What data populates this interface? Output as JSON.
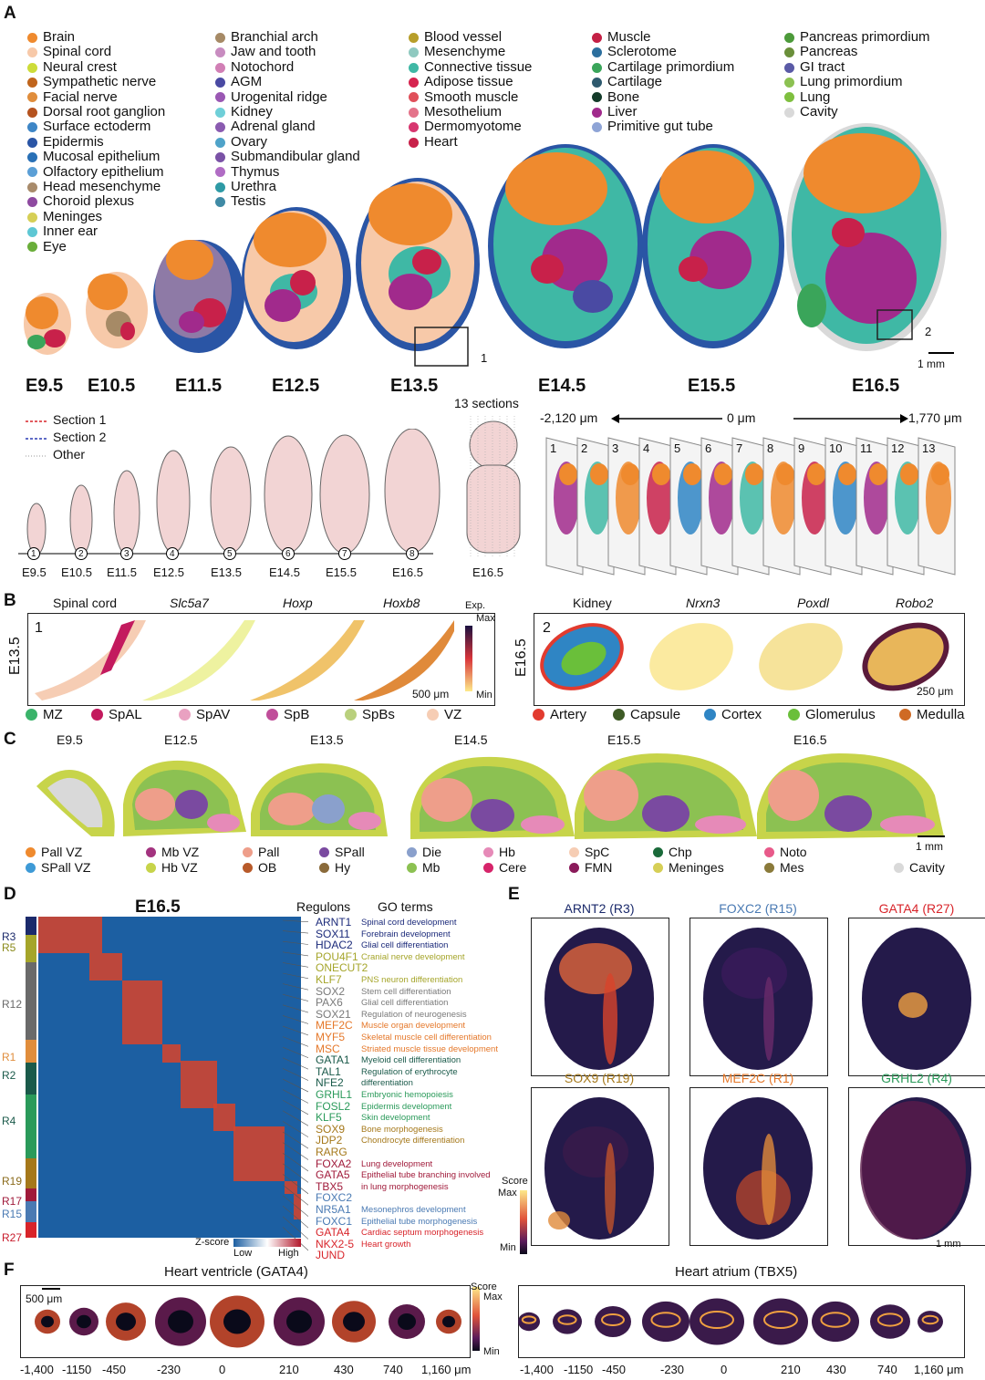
{
  "panels": {
    "A": "A",
    "B": "B",
    "C": "C",
    "D": "D",
    "E": "E",
    "F": "F"
  },
  "colors": {
    "brain": "#ef8a2e",
    "spinal": "#f7c9a9",
    "heart": "#c8214a",
    "liver": "#a12a8c",
    "muscle": "#c42045",
    "blue": "#2a63b1",
    "cyan": "#4fc9d8",
    "green": "#3aa55a",
    "olive": "#b9b537",
    "gray": "#d8d8d8",
    "navy": "#1b1e52"
  },
  "panelA": {
    "legend_col1": [
      {
        "label": "Brain",
        "color": "#ef8a2e"
      },
      {
        "label": "Spinal cord",
        "color": "#f7c9a9"
      },
      {
        "label": "Neural crest",
        "color": "#cddc39"
      },
      {
        "label": "Sympathetic nerve",
        "color": "#c0651c"
      },
      {
        "label": "Facial nerve",
        "color": "#e08d3c"
      },
      {
        "label": "Dorsal root ganglion",
        "color": "#b5531f"
      },
      {
        "label": "Surface ectoderm",
        "color": "#3e86c6"
      },
      {
        "label": "Epidermis",
        "color": "#2a55a5"
      },
      {
        "label": "Mucosal epithelium",
        "color": "#2970b6"
      },
      {
        "label": "Olfactory epithelium",
        "color": "#5b9fd6"
      },
      {
        "label": "Head mesenchyme",
        "color": "#a88b6b"
      },
      {
        "label": "Choroid plexus",
        "color": "#8e4aa0"
      },
      {
        "label": "Meninges",
        "color": "#d6cf56"
      },
      {
        "label": "Inner ear",
        "color": "#5ec7d4"
      },
      {
        "label": "Eye",
        "color": "#6aae3a"
      }
    ],
    "legend_col2": [
      {
        "label": "Branchial arch",
        "color": "#a68a66"
      },
      {
        "label": "Jaw and tooth",
        "color": "#c88cc0"
      },
      {
        "label": "Notochord",
        "color": "#d17fb5"
      },
      {
        "label": "AGM",
        "color": "#4a4aa3"
      },
      {
        "label": "Urogenital ridge",
        "color": "#9a58b3"
      },
      {
        "label": "Kidney",
        "color": "#6fcfd8"
      },
      {
        "label": "Adrenal gland",
        "color": "#8a5bb0"
      },
      {
        "label": "Ovary",
        "color": "#4fa3c9"
      },
      {
        "label": "Submandibular gland",
        "color": "#7a52a6"
      },
      {
        "label": "Thymus",
        "color": "#b06cc4"
      },
      {
        "label": "Urethra",
        "color": "#2e9aa5"
      },
      {
        "label": "Testis",
        "color": "#3f8aa5"
      }
    ],
    "legend_col3": [
      {
        "label": "Blood vessel",
        "color": "#b79e2a"
      },
      {
        "label": "Mesenchyme",
        "color": "#8fc9c0"
      },
      {
        "label": "Connective tissue",
        "color": "#3fb8a5"
      },
      {
        "label": "Adipose tissue",
        "color": "#d6244f"
      },
      {
        "label": "Smooth muscle",
        "color": "#e0505a"
      },
      {
        "label": "Mesothelium",
        "color": "#e4738a"
      },
      {
        "label": "Dermomyotome",
        "color": "#d7366f"
      },
      {
        "label": "Heart",
        "color": "#c8214a"
      }
    ],
    "legend_col4": [
      {
        "label": "Muscle",
        "color": "#c42045"
      },
      {
        "label": "Sclerotome",
        "color": "#2c6f9e"
      },
      {
        "label": "Cartilage primordium",
        "color": "#3aa55a"
      },
      {
        "label": "Cartilage",
        "color": "#2e5a6e"
      },
      {
        "label": "Bone",
        "color": "#143b2a"
      },
      {
        "label": "Liver",
        "color": "#a12a8c"
      },
      {
        "label": "Primitive gut tube",
        "color": "#8ea4d6"
      }
    ],
    "legend_col5": [
      {
        "label": "Pancreas primordium",
        "color": "#4c9a3a"
      },
      {
        "label": "Pancreas",
        "color": "#6a8f3a"
      },
      {
        "label": "GI tract",
        "color": "#5a5aa6"
      },
      {
        "label": "Lung primordium",
        "color": "#8cc152"
      },
      {
        "label": "Lung",
        "color": "#7fbf3f"
      },
      {
        "label": "Cavity",
        "color": "#d9d9d9"
      }
    ],
    "stages": [
      "E9.5",
      "E10.5",
      "E11.5",
      "E12.5",
      "E13.5",
      "E14.5",
      "E15.5",
      "E16.5"
    ],
    "box_labels": [
      "1",
      "2"
    ],
    "scale_bar": "1 mm",
    "sections_title": "13 sections",
    "section_legend": [
      "Section 1",
      "Section 2",
      "Other"
    ],
    "axis_left": "-2,120 μm",
    "axis_mid": "0 μm",
    "axis_right": "1,770 μm",
    "timeline_nums": [
      "1",
      "2",
      "3",
      "4",
      "5",
      "6",
      "7",
      "8"
    ],
    "timeline_labels": [
      "E9.5",
      "E10.5",
      "E11.5",
      "E12.5",
      "E13.5",
      "E14.5",
      "E15.5",
      "E16.5"
    ],
    "large_embryo_label": "E16.5",
    "slice_nums": [
      "1",
      "2",
      "3",
      "4",
      "5",
      "6",
      "7",
      "8",
      "9",
      "10",
      "11",
      "12",
      "13"
    ]
  },
  "panelB": {
    "left_stage": "E13.5",
    "left_box": "1",
    "left_titles": [
      "Spinal cord",
      "Slc5a7",
      "Hoxp",
      "Hoxb8"
    ],
    "exp_label": "Exp.",
    "max": "Max",
    "min": "Min",
    "left_scale": "500 μm",
    "right_stage": "E16.5",
    "right_box": "2",
    "right_titles": [
      "Kidney",
      "Nrxn3",
      "Poxdl",
      "Robo2"
    ],
    "right_scale": "250 μm",
    "left_legend": [
      {
        "label": "MZ",
        "color": "#3ab36a"
      },
      {
        "label": "SpAL",
        "color": "#c31a5e"
      },
      {
        "label": "SpAV",
        "color": "#e9a1c1"
      },
      {
        "label": "SpB",
        "color": "#c04e9a"
      },
      {
        "label": "SpBs",
        "color": "#b9d07d"
      },
      {
        "label": "VZ",
        "color": "#f6cdb4"
      }
    ],
    "right_legend": [
      {
        "label": "Artery",
        "color": "#e23b2f"
      },
      {
        "label": "Capsule",
        "color": "#3d5a25"
      },
      {
        "label": "Cortex",
        "color": "#2f85c4"
      },
      {
        "label": "Glomerulus",
        "color": "#6abf3a"
      },
      {
        "label": "Medulla",
        "color": "#cf6a24"
      }
    ]
  },
  "panelC": {
    "stages": [
      "E9.5",
      "E12.5",
      "E13.5",
      "E14.5",
      "E15.5",
      "E16.5"
    ],
    "scale_bar": "1 mm",
    "legend": [
      {
        "label": "Pall VZ",
        "color": "#ef8a2e"
      },
      {
        "label": "SPall VZ",
        "color": "#3e9ad6"
      },
      {
        "label": "Mb VZ",
        "color": "#a3337f"
      },
      {
        "label": "Hb VZ",
        "color": "#c7d44a"
      },
      {
        "label": "Pall",
        "color": "#ee9e8a"
      },
      {
        "label": "OB",
        "color": "#b85a2a"
      },
      {
        "label": "SPall",
        "color": "#7a4aa0"
      },
      {
        "label": "Hy",
        "color": "#8a6a3a"
      },
      {
        "label": "Die",
        "color": "#8aa0cc"
      },
      {
        "label": "Mb",
        "color": "#8cc152"
      },
      {
        "label": "Hb",
        "color": "#e68ab8"
      },
      {
        "label": "Cere",
        "color": "#d6246a"
      },
      {
        "label": "SpC",
        "color": "#f6cdb4"
      },
      {
        "label": "FMN",
        "color": "#8a1a5a"
      },
      {
        "label": "Chp",
        "color": "#1a6a3a"
      },
      {
        "label": "Meninges",
        "color": "#d6cf56"
      },
      {
        "label": "Noto",
        "color": "#e85a8a"
      },
      {
        "label": "Mes",
        "color": "#8a7a3a"
      },
      {
        "label": "Cavity",
        "color": "#d9d9d9"
      }
    ]
  },
  "panelD": {
    "title": "E16.5",
    "col_regulons": "Regulons",
    "col_go": "GO terms",
    "module_labels": [
      {
        "label": "R3",
        "color": "#1b2a6b",
        "y": 1020
      },
      {
        "label": "R5",
        "color": "#8a8a1a",
        "y": 1032
      },
      {
        "label": "R12",
        "color": "#6a6a6a",
        "y": 1094
      },
      {
        "label": "R1",
        "color": "#e08d3c",
        "y": 1152
      },
      {
        "label": "R2",
        "color": "#1a5a4a",
        "y": 1172
      },
      {
        "label": "R4",
        "color": "#1a5a4a",
        "y": 1222
      },
      {
        "label": "R19",
        "color": "#8a6a1a",
        "y": 1288
      },
      {
        "label": "R17",
        "color": "#a01a3a",
        "y": 1310
      },
      {
        "label": "R15",
        "color": "#4a7ab3",
        "y": 1324
      },
      {
        "label": "R27",
        "color": "#c81a2a",
        "y": 1350
      }
    ],
    "regulons": [
      {
        "name": "ARNT1",
        "go": "Spinal cord development",
        "color": "#1b2a7a"
      },
      {
        "name": "SOX11",
        "go": "Forebrain development",
        "color": "#1b2a7a"
      },
      {
        "name": "HDAC2",
        "go": "Glial cell differentiation",
        "color": "#1b2a7a"
      },
      {
        "name": "POU4F1",
        "go": "Cranial nerve development",
        "color": "#a5a52a"
      },
      {
        "name": "ONECUT2",
        "go": "",
        "color": "#a5a52a"
      },
      {
        "name": "KLF7",
        "go": "PNS neuron differentiation",
        "color": "#a5a52a"
      },
      {
        "name": "SOX2",
        "go": "Stem cell differentiation",
        "color": "#7a7a7a"
      },
      {
        "name": "PAX6",
        "go": "Glial cell differentiation",
        "color": "#7a7a7a"
      },
      {
        "name": "SOX21",
        "go": "Regulation of neurogenesis",
        "color": "#7a7a7a"
      },
      {
        "name": "MEF2C",
        "go": "Muscle organ development",
        "color": "#e5782a"
      },
      {
        "name": "MYF5",
        "go": "Skeletal muscle cell differentiation",
        "color": "#e5782a"
      },
      {
        "name": "MSC",
        "go": "Striated muscle tissue development",
        "color": "#e5782a"
      },
      {
        "name": "GATA1",
        "go": "Myeloid cell differentiation",
        "color": "#1a5a4a"
      },
      {
        "name": "TAL1",
        "go": "Regulation of erythrocyte",
        "color": "#1a5a4a"
      },
      {
        "name": "NFE2",
        "go": "differentiation",
        "color": "#1a5a4a"
      },
      {
        "name": "GRHL1",
        "go": "Embryonic hemopoiesis",
        "color": "#2a9a5a"
      },
      {
        "name": "FOSL2",
        "go": "Epidermis development",
        "color": "#2a9a5a"
      },
      {
        "name": "KLF5",
        "go": "Skin development",
        "color": "#2a9a5a"
      },
      {
        "name": "SOX9",
        "go": "Bone morphogenesis",
        "color": "#a5781a"
      },
      {
        "name": "JDP2",
        "go": "Chondrocyte differentiation",
        "color": "#a5781a"
      },
      {
        "name": "RARG",
        "go": "",
        "color": "#a5781a"
      },
      {
        "name": "FOXA2",
        "go": "Lung development",
        "color": "#a01a3a"
      },
      {
        "name": "GATA5",
        "go": "Epithelial tube branching involved",
        "color": "#a01a3a"
      },
      {
        "name": "TBX5",
        "go": "in lung morphogenesis",
        "color": "#a01a3a"
      },
      {
        "name": "FOXC2",
        "go": "",
        "color": "#4a7ab3"
      },
      {
        "name": "NR5A1",
        "go": "Mesonephros development",
        "color": "#4a7ab3"
      },
      {
        "name": "FOXC1",
        "go": "Epithelial tube morphogenesis",
        "color": "#4a7ab3"
      },
      {
        "name": "GATA4",
        "go": "Cardiac septum morphogenesis",
        "color": "#d8242a"
      },
      {
        "name": "NKX2-5",
        "go": "Heart growth",
        "color": "#d8242a"
      },
      {
        "name": "JUND",
        "go": "",
        "color": "#d8242a"
      }
    ],
    "zscore_label": "Z-score",
    "low": "Low",
    "high": "High"
  },
  "panelE": {
    "titles": [
      {
        "label": "ARNT2 (R3)",
        "color": "#1b2a6b"
      },
      {
        "label": "FOXC2 (R15)",
        "color": "#4a7ab3"
      },
      {
        "label": "GATA4 (R27)",
        "color": "#d8242a"
      },
      {
        "label": "SOX9 (R19)",
        "color": "#a5781a"
      },
      {
        "label": "MEF2C (R1)",
        "color": "#e5782a"
      },
      {
        "label": "GRHL2 (R4)",
        "color": "#2a9a5a"
      }
    ],
    "score": "Score",
    "max": "Max",
    "min": "Min",
    "scale_bar": "1 mm"
  },
  "panelF": {
    "left_title": "Heart ventricle (GATA4)",
    "right_title": "Heart atrium (TBX5)",
    "scale_bar": "500 μm",
    "score": "Score",
    "max": "Max",
    "min": "Min",
    "ticks": [
      "-1,400",
      "-1150",
      "-450",
      "-230",
      "0",
      "210",
      "430",
      "740",
      "1,160 μm"
    ]
  }
}
